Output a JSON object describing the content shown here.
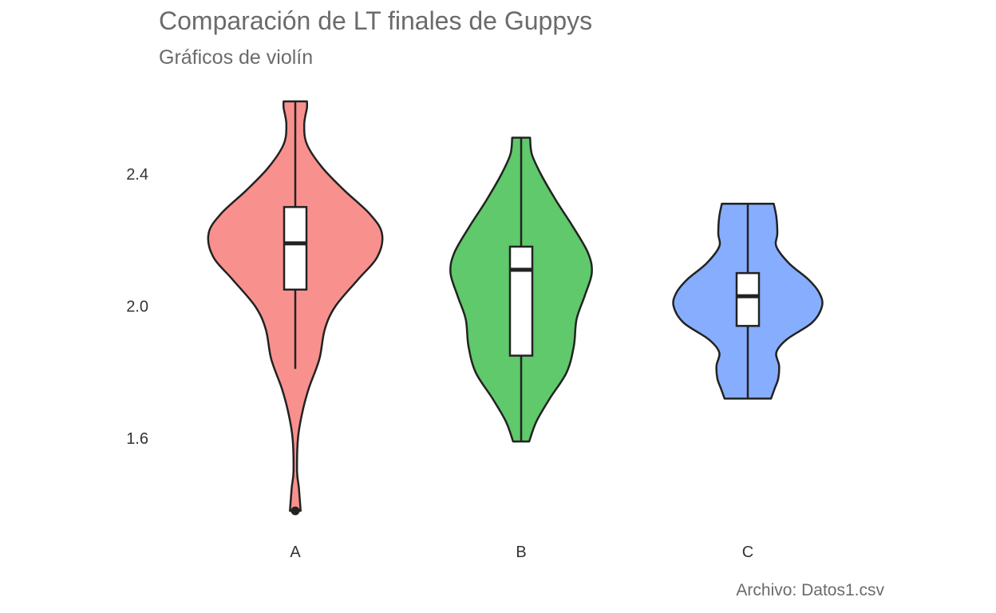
{
  "chart_data": {
    "type": "violin",
    "title": "Comparación de LT finales de Guppys",
    "subtitle": "Gráficos de violín",
    "caption": "Archivo: Datos1.csv",
    "xlabel": "",
    "ylabel": "",
    "categories": [
      "A",
      "B",
      "C"
    ],
    "yticks": [
      "1.6",
      "2.0",
      "2.4"
    ],
    "ytick_values": [
      1.6,
      2.0,
      2.4
    ],
    "ylim": [
      1.3,
      2.72
    ],
    "grid": false,
    "legend": "none",
    "colors": [
      "#F8918E",
      "#5FC96B",
      "#86ADFE"
    ],
    "series": [
      {
        "category": "A",
        "min": 1.38,
        "q1": 2.05,
        "median": 2.19,
        "q3": 2.3,
        "max": 2.62,
        "whisker_low": 1.81,
        "whisker_high": 2.62,
        "outliers": [
          1.38
        ],
        "density": [
          [
            1.38,
            0.06
          ],
          [
            1.45,
            0.04
          ],
          [
            1.5,
            0.02
          ],
          [
            1.6,
            0.03
          ],
          [
            1.68,
            0.08
          ],
          [
            1.75,
            0.15
          ],
          [
            1.84,
            0.27
          ],
          [
            1.93,
            0.33
          ],
          [
            2.0,
            0.45
          ],
          [
            2.08,
            0.7
          ],
          [
            2.15,
            0.92
          ],
          [
            2.22,
            0.97
          ],
          [
            2.28,
            0.83
          ],
          [
            2.35,
            0.55
          ],
          [
            2.42,
            0.3
          ],
          [
            2.49,
            0.13
          ],
          [
            2.55,
            0.1
          ],
          [
            2.6,
            0.13
          ],
          [
            2.62,
            0.13
          ]
        ]
      },
      {
        "category": "B",
        "min": 1.59,
        "q1": 1.85,
        "median": 2.11,
        "q3": 2.18,
        "max": 2.51,
        "whisker_low": 1.59,
        "whisker_high": 2.51,
        "outliers": [],
        "density": [
          [
            1.59,
            0.09
          ],
          [
            1.65,
            0.17
          ],
          [
            1.72,
            0.32
          ],
          [
            1.8,
            0.51
          ],
          [
            1.88,
            0.59
          ],
          [
            1.96,
            0.62
          ],
          [
            2.03,
            0.71
          ],
          [
            2.1,
            0.79
          ],
          [
            2.16,
            0.75
          ],
          [
            2.24,
            0.58
          ],
          [
            2.32,
            0.39
          ],
          [
            2.4,
            0.22
          ],
          [
            2.46,
            0.12
          ],
          [
            2.51,
            0.1
          ]
        ]
      },
      {
        "category": "C",
        "min": 1.72,
        "q1": 1.94,
        "median": 2.03,
        "q3": 2.1,
        "max": 2.31,
        "whisker_low": 1.72,
        "whisker_high": 2.31,
        "outliers": [],
        "density": [
          [
            1.72,
            0.26
          ],
          [
            1.75,
            0.3
          ],
          [
            1.78,
            0.34
          ],
          [
            1.82,
            0.35
          ],
          [
            1.86,
            0.32
          ],
          [
            1.9,
            0.44
          ],
          [
            1.95,
            0.72
          ],
          [
            2.0,
            0.83
          ],
          [
            2.04,
            0.8
          ],
          [
            2.08,
            0.68
          ],
          [
            2.13,
            0.46
          ],
          [
            2.18,
            0.32
          ],
          [
            2.22,
            0.33
          ],
          [
            2.27,
            0.32
          ],
          [
            2.31,
            0.29
          ]
        ]
      }
    ]
  }
}
